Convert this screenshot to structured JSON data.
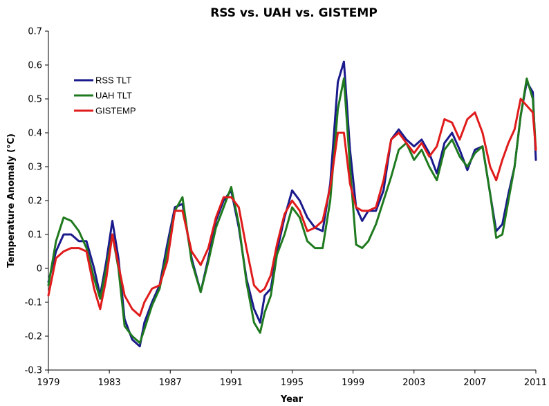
{
  "chart_data": {
    "type": "line",
    "title": "RSS vs. UAH vs. GISTEMP",
    "xlabel": "Year",
    "ylabel": "Temperature Anomaly (°C)",
    "xlim": [
      1979,
      2011
    ],
    "ylim": [
      -0.3,
      0.7
    ],
    "x_ticks": [
      1979,
      1983,
      1987,
      1991,
      1995,
      1999,
      2003,
      2007,
      2011
    ],
    "y_ticks": [
      -0.3,
      -0.2,
      -0.1,
      0,
      0.1,
      0.2,
      0.3,
      0.4,
      0.5,
      0.6,
      0.7
    ],
    "x_tick_labels": [
      "1979",
      "1983",
      "1987",
      "1991",
      "1995",
      "1999",
      "2003",
      "2007",
      "2011"
    ],
    "y_tick_labels": [
      "-0.3",
      "-0.2",
      "-0.1",
      "0",
      "0.1",
      "0.2",
      "0.3",
      "0.4",
      "0.5",
      "0.6",
      "0.7"
    ],
    "grid": false,
    "legend_position": "top-left",
    "series": [
      {
        "name": "RSS TLT",
        "color": "#1a1a8c",
        "x": [
          1979.0,
          1979.5,
          1980.0,
          1980.5,
          1981.0,
          1981.5,
          1982.0,
          1982.4,
          1982.8,
          1983.2,
          1983.6,
          1984.0,
          1984.5,
          1985.0,
          1985.3,
          1985.8,
          1986.3,
          1986.8,
          1987.3,
          1987.8,
          1988.4,
          1989.0,
          1989.5,
          1990.0,
          1990.5,
          1991.0,
          1991.5,
          1992.0,
          1992.5,
          1992.9,
          1993.2,
          1993.6,
          1994.0,
          1994.5,
          1995.0,
          1995.5,
          1996.0,
          1996.5,
          1997.0,
          1997.5,
          1998.0,
          1998.4,
          1998.8,
          1999.2,
          1999.6,
          2000.0,
          2000.5,
          2001.0,
          2001.5,
          2002.0,
          2002.5,
          2003.0,
          2003.5,
          2004.0,
          2004.5,
          2005.0,
          2005.5,
          2006.0,
          2006.5,
          2007.0,
          2007.5,
          2008.0,
          2008.4,
          2008.8,
          2009.2,
          2009.6,
          2010.0,
          2010.4,
          2010.8,
          2011.0
        ],
        "values": [
          -0.04,
          0.05,
          0.1,
          0.1,
          0.08,
          0.08,
          0.0,
          -0.08,
          0.02,
          0.14,
          0.03,
          -0.15,
          -0.21,
          -0.23,
          -0.16,
          -0.1,
          -0.05,
          0.07,
          0.18,
          0.19,
          0.03,
          -0.07,
          0.03,
          0.14,
          0.2,
          0.23,
          0.12,
          -0.03,
          -0.12,
          -0.16,
          -0.08,
          -0.06,
          0.05,
          0.15,
          0.23,
          0.2,
          0.15,
          0.12,
          0.11,
          0.25,
          0.55,
          0.61,
          0.35,
          0.18,
          0.14,
          0.17,
          0.17,
          0.23,
          0.38,
          0.41,
          0.38,
          0.36,
          0.38,
          0.34,
          0.28,
          0.37,
          0.4,
          0.35,
          0.29,
          0.35,
          0.36,
          0.22,
          0.11,
          0.13,
          0.22,
          0.3,
          0.45,
          0.55,
          0.52,
          0.32
        ]
      },
      {
        "name": "UAH TLT",
        "color": "#1f7a1f",
        "x": [
          1979.0,
          1979.5,
          1980.0,
          1980.5,
          1981.0,
          1981.5,
          1982.0,
          1982.4,
          1982.8,
          1983.2,
          1983.6,
          1984.0,
          1984.5,
          1985.0,
          1985.3,
          1985.8,
          1986.3,
          1986.8,
          1987.3,
          1987.8,
          1988.4,
          1989.0,
          1989.5,
          1990.0,
          1990.5,
          1991.0,
          1991.5,
          1992.0,
          1992.5,
          1992.9,
          1993.2,
          1993.6,
          1994.0,
          1994.5,
          1995.0,
          1995.5,
          1996.0,
          1996.5,
          1997.0,
          1997.5,
          1998.0,
          1998.4,
          1998.8,
          1999.2,
          1999.6,
          2000.0,
          2000.5,
          2001.0,
          2001.5,
          2002.0,
          2002.5,
          2003.0,
          2003.5,
          2004.0,
          2004.5,
          2005.0,
          2005.5,
          2006.0,
          2006.5,
          2007.0,
          2007.5,
          2008.0,
          2008.4,
          2008.8,
          2009.2,
          2009.6,
          2010.0,
          2010.4,
          2010.8,
          2011.0
        ],
        "values": [
          -0.05,
          0.08,
          0.15,
          0.14,
          0.11,
          0.06,
          -0.03,
          -0.09,
          0.0,
          0.1,
          0.0,
          -0.17,
          -0.2,
          -0.22,
          -0.18,
          -0.11,
          -0.06,
          0.05,
          0.17,
          0.21,
          0.02,
          -0.07,
          0.02,
          0.12,
          0.18,
          0.24,
          0.13,
          -0.04,
          -0.16,
          -0.19,
          -0.13,
          -0.08,
          0.04,
          0.1,
          0.18,
          0.15,
          0.08,
          0.06,
          0.06,
          0.2,
          0.47,
          0.56,
          0.3,
          0.07,
          0.06,
          0.08,
          0.13,
          0.2,
          0.27,
          0.35,
          0.37,
          0.32,
          0.35,
          0.3,
          0.26,
          0.35,
          0.38,
          0.33,
          0.3,
          0.34,
          0.36,
          0.22,
          0.09,
          0.1,
          0.2,
          0.3,
          0.45,
          0.56,
          0.5,
          0.35
        ]
      },
      {
        "name": "GISTEMP",
        "color": "#e01b1b",
        "x": [
          1979.0,
          1979.5,
          1980.0,
          1980.5,
          1981.0,
          1981.5,
          1982.0,
          1982.4,
          1982.8,
          1983.2,
          1983.6,
          1984.0,
          1984.5,
          1985.0,
          1985.3,
          1985.8,
          1986.3,
          1986.8,
          1987.3,
          1987.8,
          1988.4,
          1989.0,
          1989.5,
          1990.0,
          1990.5,
          1991.0,
          1991.5,
          1992.0,
          1992.5,
          1992.9,
          1993.2,
          1993.6,
          1994.0,
          1994.5,
          1995.0,
          1995.5,
          1996.0,
          1996.5,
          1997.0,
          1997.5,
          1998.0,
          1998.4,
          1998.8,
          1999.2,
          1999.6,
          2000.0,
          2000.5,
          2001.0,
          2001.5,
          2002.0,
          2002.5,
          2003.0,
          2003.5,
          2004.0,
          2004.5,
          2005.0,
          2005.5,
          2006.0,
          2006.5,
          2007.0,
          2007.5,
          2008.0,
          2008.4,
          2008.8,
          2009.2,
          2009.6,
          2010.0,
          2010.4,
          2010.8,
          2011.0
        ],
        "values": [
          -0.08,
          0.03,
          0.05,
          0.06,
          0.06,
          0.05,
          -0.06,
          -0.12,
          -0.03,
          0.1,
          0.01,
          -0.08,
          -0.12,
          -0.14,
          -0.1,
          -0.06,
          -0.05,
          0.02,
          0.17,
          0.17,
          0.05,
          0.01,
          0.06,
          0.15,
          0.21,
          0.21,
          0.18,
          0.06,
          -0.05,
          -0.07,
          -0.06,
          -0.02,
          0.07,
          0.16,
          0.2,
          0.17,
          0.11,
          0.12,
          0.14,
          0.24,
          0.4,
          0.4,
          0.25,
          0.18,
          0.17,
          0.17,
          0.18,
          0.26,
          0.38,
          0.4,
          0.37,
          0.34,
          0.37,
          0.33,
          0.36,
          0.44,
          0.43,
          0.38,
          0.44,
          0.46,
          0.4,
          0.3,
          0.26,
          0.32,
          0.37,
          0.41,
          0.5,
          0.48,
          0.46,
          0.35
        ]
      }
    ]
  }
}
